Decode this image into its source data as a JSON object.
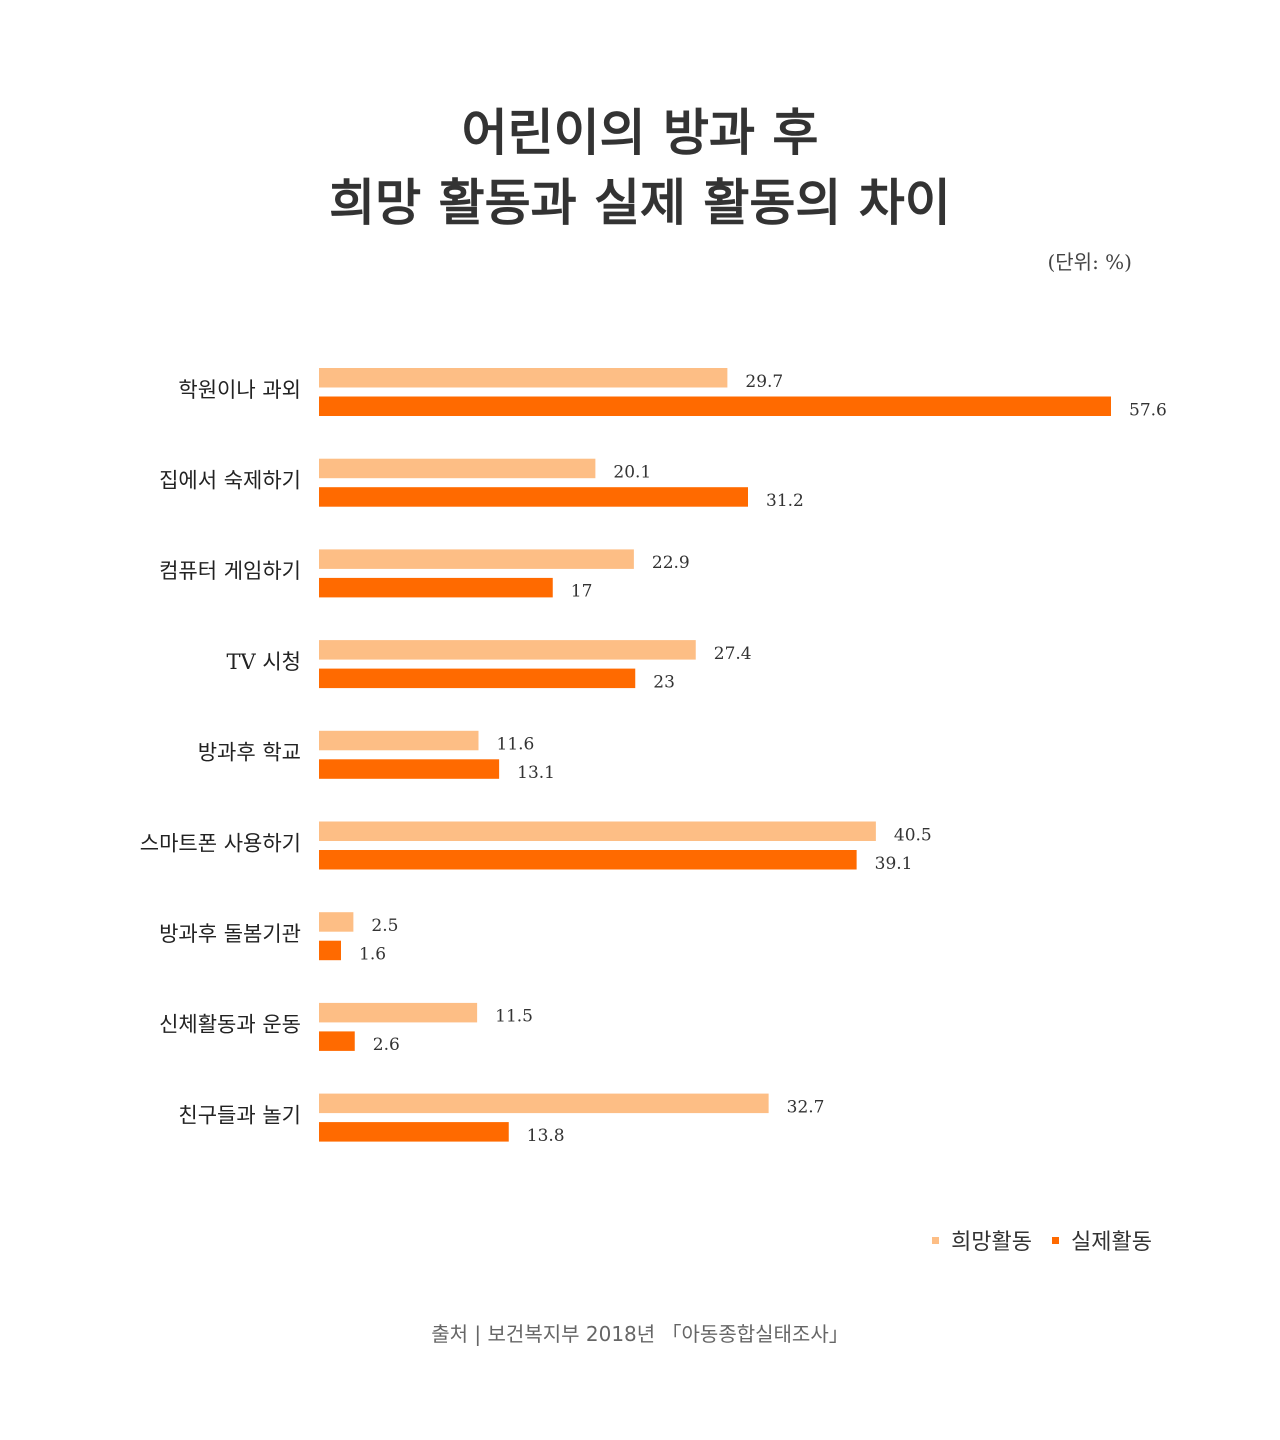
{
  "chart_data": {
    "type": "bar",
    "orientation": "horizontal",
    "title_lines": [
      "어린이의 방과 후",
      "희망 활동과 실제 활동의 차이"
    ],
    "unit_note": "(단위: %)",
    "categories": [
      "학원이나 과외",
      "집에서 숙제하기",
      "컴퓨터 게임하기",
      "TV 시청",
      "방과후 학교",
      "스마트폰 사용하기",
      "방과후 돌봄기관",
      "신체활동과 운동",
      "친구들과 놀기"
    ],
    "series": [
      {
        "name": "희망활동",
        "color": "#FDBE85",
        "values": [
          29.7,
          20.1,
          22.9,
          27.4,
          11.6,
          40.5,
          2.5,
          11.5,
          32.7
        ],
        "labels": [
          "29.7",
          "20.1",
          "22.9",
          "27.4",
          "11.6",
          "40.5",
          "2.5",
          "11.5",
          "32.7"
        ]
      },
      {
        "name": "실제활동",
        "color": "#FF6A00",
        "values": [
          57.6,
          31.2,
          17,
          23,
          13.1,
          39.1,
          1.6,
          2.6,
          13.8
        ],
        "labels": [
          "57.6",
          "31.2",
          "17",
          "23",
          "13.1",
          "39.1",
          "1.6",
          "2.6",
          "13.8"
        ]
      }
    ],
    "xlim": [
      0,
      57.6
    ],
    "grid": false,
    "legend_position": "bottom-right"
  },
  "source": "출처  |  보건복지부 2018년 「아동종합실태조사」"
}
